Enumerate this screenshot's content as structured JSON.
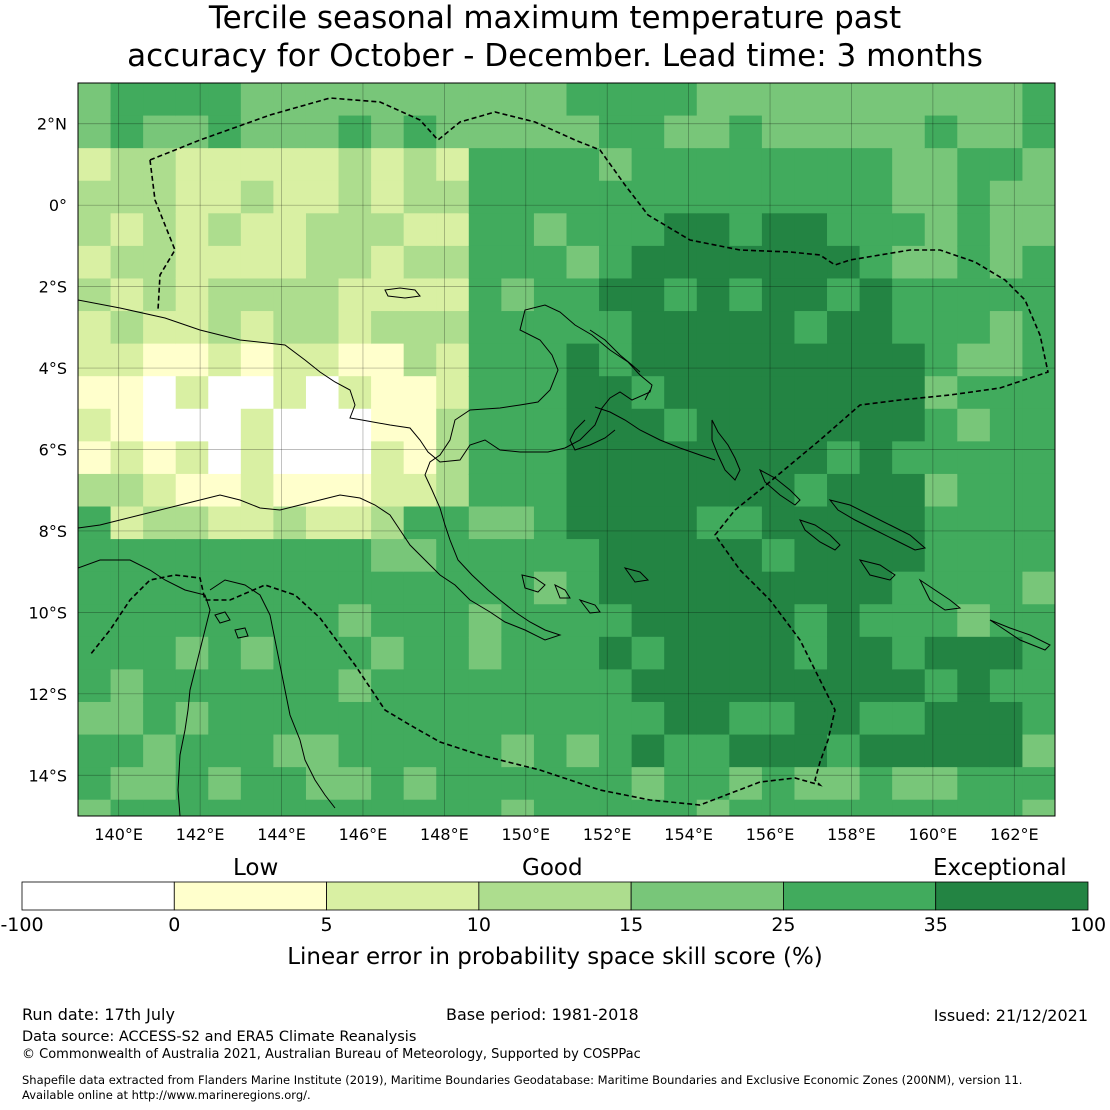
{
  "title_line1": "Tercile seasonal maximum temperature past",
  "title_line2": "accuracy for October - December. Lead time: 3 months",
  "map": {
    "lon_ticks": [
      "140°E",
      "142°E",
      "144°E",
      "146°E",
      "148°E",
      "150°E",
      "152°E",
      "154°E",
      "156°E",
      "158°E",
      "160°E",
      "162°E"
    ],
    "lat_ticks": [
      "2°N",
      "0°",
      "2°S",
      "4°S",
      "6°S",
      "8°S",
      "10°S",
      "12°S",
      "14°S"
    ],
    "lon_range": [
      139,
      163
    ],
    "lat_range": [
      -15,
      3
    ],
    "cell_size_deg": 0.8,
    "grid_lines": true,
    "features": [
      "coastline",
      "maritime-boundary-dashed"
    ]
  },
  "colorbar": {
    "category_labels": [
      "Low",
      "Good",
      "Exceptional"
    ],
    "tick_labels": [
      "-100",
      "0",
      "5",
      "10",
      "15",
      "25",
      "35",
      "100"
    ],
    "colors": [
      "#ffffff",
      "#ffffcc",
      "#d9f0a3",
      "#addd8e",
      "#78c679",
      "#41ab5d",
      "#238443"
    ],
    "title": "Linear error in probability space skill score (%)"
  },
  "footer": {
    "run_date": "Run date: 17th July",
    "base_period": "Base period: 1981-2018",
    "issued": "Issued: 21/12/2021",
    "data_source": "Data source: ACCESS-S2 and ERA5 Climate Reanalysis",
    "copyright": "© Commonwealth of Australia 2021, Australian Bureau of Meteorology, Supported by COSPPac",
    "shapefile_line1": "Shapefile data extracted from Flanders Marine Institute (2019), Maritime Boundaries Geodatabase: Maritime Boundaries and Exclusive Economic Zones (200NM), version 11.",
    "shapefile_line2": "Available online at http://www.marineregions.org/."
  }
}
